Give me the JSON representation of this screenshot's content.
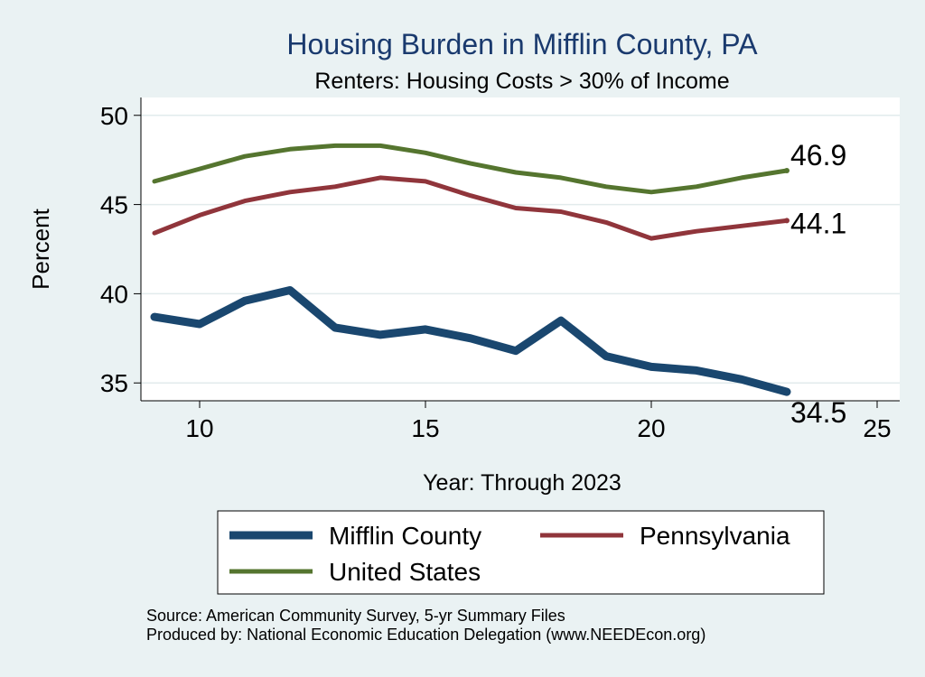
{
  "chart_data": {
    "type": "line",
    "title": "Housing Burden in Mifflin County, PA",
    "subtitle": "Renters: Housing Costs > 30% of Income",
    "xlabel": "Year: Through 2023",
    "ylabel": "Percent",
    "xlim": [
      8.7,
      25.5
    ],
    "ylim": [
      34.0,
      51.0
    ],
    "xticks": [
      10,
      15,
      20,
      25
    ],
    "yticks": [
      35,
      40,
      45,
      50
    ],
    "grid": true,
    "legend_position": "bottom",
    "series": [
      {
        "name": "Mifflin County",
        "color": "#1a476f",
        "x": [
          9,
          10,
          11,
          12,
          13,
          14,
          15,
          16,
          17,
          18,
          19,
          20,
          21,
          22,
          23
        ],
        "values": [
          38.7,
          38.3,
          39.6,
          40.2,
          38.1,
          37.7,
          38.0,
          37.5,
          36.8,
          38.5,
          36.5,
          35.9,
          35.7,
          35.2,
          34.5
        ],
        "end_label": "34.5"
      },
      {
        "name": "Pennsylvania",
        "color": "#90353b",
        "x": [
          9,
          10,
          11,
          12,
          13,
          14,
          15,
          16,
          17,
          18,
          19,
          20,
          21,
          22,
          23
        ],
        "values": [
          43.4,
          44.4,
          45.2,
          45.7,
          46.0,
          46.5,
          46.3,
          45.5,
          44.8,
          44.6,
          44.0,
          43.1,
          43.5,
          43.8,
          44.1
        ],
        "end_label": "44.1"
      },
      {
        "name": "United States",
        "color": "#55752f",
        "x": [
          9,
          10,
          11,
          12,
          13,
          14,
          15,
          16,
          17,
          18,
          19,
          20,
          21,
          22,
          23
        ],
        "values": [
          46.3,
          47.0,
          47.7,
          48.1,
          48.3,
          48.3,
          47.9,
          47.3,
          46.8,
          46.5,
          46.0,
          45.7,
          46.0,
          46.5,
          46.9
        ],
        "end_label": "46.9"
      }
    ]
  },
  "source_lines": [
    "Source: American Community Survey, 5-yr Summary Files",
    "Produced by: National Economic Education Delegation (www.NEEDEcon.org)"
  ]
}
